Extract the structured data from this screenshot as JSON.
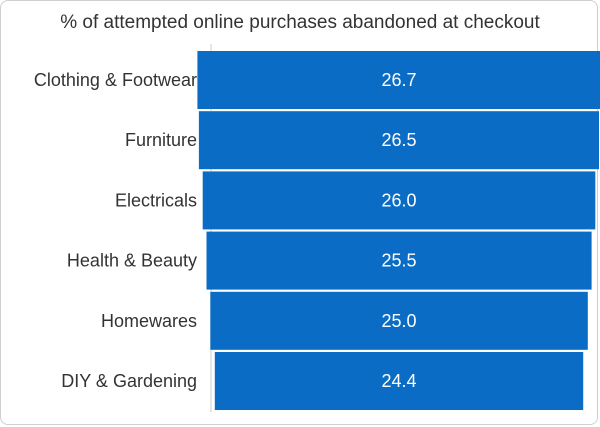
{
  "chart_data": {
    "type": "bar",
    "orientation": "horizontal",
    "title": "% of attempted online purchases abandoned at checkout",
    "xlabel": "",
    "ylabel": "",
    "categories": [
      "Clothing & Footwear",
      "Furniture",
      "Electricals",
      "Health & Beauty",
      "Homewares",
      "DIY & Gardening"
    ],
    "values": [
      26.7,
      26.5,
      26.0,
      25.5,
      25.0,
      24.4
    ],
    "data_labels": [
      "26.7",
      "26.5",
      "26.0",
      "25.5",
      "25.0",
      "24.4"
    ],
    "bar_alignment": "centered",
    "grid": false,
    "legend": "none",
    "bar_color": "#0a6cc4"
  }
}
